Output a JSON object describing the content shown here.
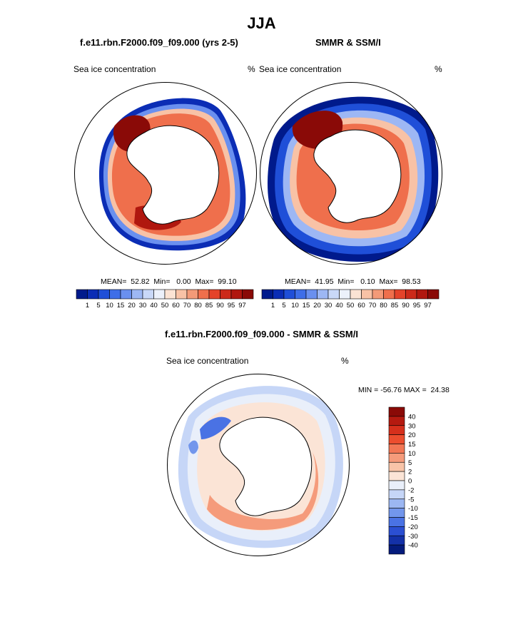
{
  "figure": {
    "season_title": "JJA",
    "model_case_title": "f.e11.rbn.F2000.f09_f09.000 (yrs 2-5)",
    "obs_title": "SMMR & SSM/I",
    "diff_title": "f.e11.rbn.F2000.f09_f09.000 - SMMR & SSM/I"
  },
  "panels": {
    "model": {
      "variable": "Sea ice concentration",
      "units": "%",
      "stats": "MEAN=  52.82  Min=   0.00  Max=  99.10"
    },
    "obs": {
      "variable": "Sea ice concentration",
      "units": "%",
      "stats": "MEAN=  41.95  Min=   0.10  Max=  98.53"
    },
    "diff": {
      "variable": "Sea ice concentration",
      "units": "%",
      "stats": "MIN = -56.76 MAX =  24.38"
    }
  },
  "abs_colorbar": {
    "labels": [
      "1",
      "5",
      "10",
      "15",
      "20",
      "30",
      "40",
      "50",
      "60",
      "70",
      "80",
      "85",
      "90",
      "95",
      "97"
    ],
    "colors": [
      "#001a8c",
      "#0b2db5",
      "#1f4fd8",
      "#3e6ee8",
      "#6a90ef",
      "#9db7f4",
      "#c9d8f8",
      "#ecf1fb",
      "#fbe3d4",
      "#f8c2a6",
      "#f39a78",
      "#ef6f4c",
      "#e4432a",
      "#cc2a1a",
      "#b0170f",
      "#8a0a07"
    ]
  },
  "diff_colorbar": {
    "labels": [
      "40",
      "30",
      "20",
      "15",
      "10",
      "5",
      "2",
      "0",
      "-2",
      "-5",
      "-10",
      "-15",
      "-20",
      "-30",
      "-40"
    ],
    "colors": [
      "#8a0a07",
      "#b51a10",
      "#d6301c",
      "#ec4d2e",
      "#f27654",
      "#f59b7b",
      "#f8c4a8",
      "#fbe4d6",
      "#e9effa",
      "#c6d6f7",
      "#9cb7f2",
      "#7296ec",
      "#4a72e4",
      "#2b4fd2",
      "#1431a8",
      "#041b7c"
    ]
  },
  "chart_data": [
    {
      "type": "heatmap",
      "title": "f.e11.rbn.F2000.f09_f09.000 (yrs 2-5)",
      "variable": "Sea ice concentration",
      "units": "%",
      "projection": "south polar stereographic",
      "stats": {
        "mean": 52.82,
        "min": 0.0,
        "max": 99.1
      },
      "levels": [
        1,
        5,
        10,
        15,
        20,
        30,
        40,
        50,
        60,
        70,
        80,
        85,
        90,
        95,
        97
      ]
    },
    {
      "type": "heatmap",
      "title": "SMMR & SSM/I",
      "variable": "Sea ice concentration",
      "units": "%",
      "projection": "south polar stereographic",
      "stats": {
        "mean": 41.95,
        "min": 0.1,
        "max": 98.53
      },
      "levels": [
        1,
        5,
        10,
        15,
        20,
        30,
        40,
        50,
        60,
        70,
        80,
        85,
        90,
        95,
        97
      ]
    },
    {
      "type": "heatmap",
      "title": "f.e11.rbn.F2000.f09_f09.000 - SMMR & SSM/I",
      "variable": "Sea ice concentration",
      "units": "%",
      "projection": "south polar stereographic",
      "stats": {
        "min": -56.76,
        "max": 24.38
      },
      "levels": [
        -40,
        -30,
        -20,
        -15,
        -10,
        -5,
        -2,
        0,
        2,
        5,
        10,
        15,
        20,
        30,
        40
      ]
    }
  ]
}
